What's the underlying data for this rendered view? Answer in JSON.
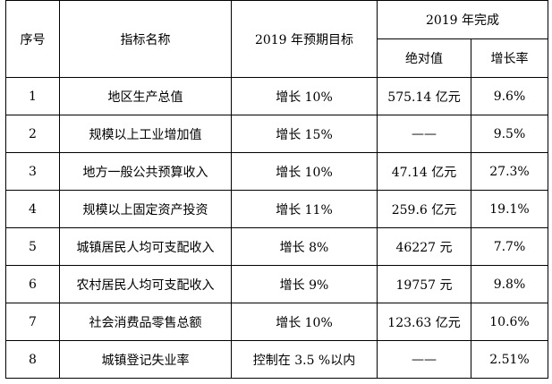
{
  "table": {
    "headers": {
      "seq": "序号",
      "indicator": "指标名称",
      "target": "2019 年预期目标",
      "completion": "2019 年完成",
      "absolute": "绝对值",
      "growth": "增长率"
    },
    "rows": [
      {
        "seq": "1",
        "indicator": "地区生产总值",
        "target": "增长 10%",
        "absolute": "575.14 亿元",
        "growth": "9.6%"
      },
      {
        "seq": "2",
        "indicator": "规模以上工业增加值",
        "target": "增长 15%",
        "absolute": "——",
        "growth": "9.5%"
      },
      {
        "seq": "3",
        "indicator": "地方一般公共预算收入",
        "target": "增长 10%",
        "absolute": "47.14 亿元",
        "growth": "27.3%"
      },
      {
        "seq": "4",
        "indicator": "规模以上固定资产投资",
        "target": "增长 11%",
        "absolute": "259.6 亿元",
        "growth": "19.1%"
      },
      {
        "seq": "5",
        "indicator": "城镇居民人均可支配收入",
        "target": "增长 8%",
        "absolute": "46227 元",
        "growth": "7.7%"
      },
      {
        "seq": "6",
        "indicator": "农村居民人均可支配收入",
        "target": "增长 9%",
        "absolute": "19757 元",
        "growth": "9.8%"
      },
      {
        "seq": "7",
        "indicator": "社会消费品零售总额",
        "target": "增长 10%",
        "absolute": "123.63 亿元",
        "growth": "10.6%"
      },
      {
        "seq": "8",
        "indicator": "城镇登记失业率",
        "target": "控制在 3.5 %以内",
        "absolute": "——",
        "growth": "2.51%"
      }
    ]
  }
}
